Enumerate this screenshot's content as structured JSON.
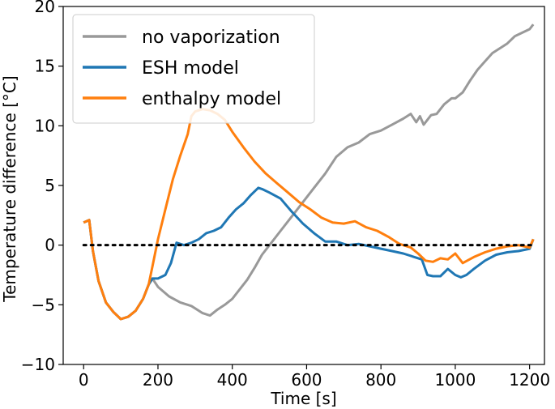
{
  "chart_data": {
    "type": "line",
    "title": "",
    "xlabel": "Time [s]",
    "ylabel": "Temperature difference [°C]",
    "xlim": [
      -55,
      1240
    ],
    "ylim": [
      -10,
      20
    ],
    "xticks": [
      0,
      200,
      400,
      600,
      800,
      1000,
      1200
    ],
    "yticks": [
      -10,
      -5,
      0,
      5,
      10,
      15,
      20
    ],
    "xtick_labels": [
      "0",
      "200",
      "400",
      "600",
      "800",
      "1000",
      "1200"
    ],
    "ytick_labels": [
      "−10",
      "−5",
      "0",
      "5",
      "10",
      "15",
      "20"
    ],
    "grid": false,
    "legend_position": "top-left",
    "reference_line": {
      "y": 0,
      "style": "dotted",
      "color": "#000000",
      "x_range": [
        0,
        1210
      ]
    },
    "series": [
      {
        "name": "no vaporization",
        "color": "#999999",
        "x": [
          0,
          15,
          25,
          40,
          60,
          80,
          100,
          120,
          140,
          160,
          175,
          185,
          200,
          230,
          260,
          290,
          320,
          340,
          360,
          380,
          400,
          420,
          440,
          460,
          480,
          500,
          530,
          560,
          590,
          620,
          650,
          680,
          710,
          740,
          770,
          800,
          830,
          860,
          880,
          895,
          905,
          915,
          935,
          950,
          970,
          990,
          1000,
          1020,
          1040,
          1060,
          1080,
          1100,
          1120,
          1140,
          1160,
          1180,
          1200,
          1210
        ],
        "y": [
          1.9,
          2.1,
          -0.5,
          -3.0,
          -4.8,
          -5.6,
          -6.2,
          -6.0,
          -5.5,
          -4.5,
          -3.3,
          -2.8,
          -3.5,
          -4.3,
          -4.8,
          -5.1,
          -5.7,
          -5.9,
          -5.4,
          -5.0,
          -4.5,
          -3.7,
          -2.9,
          -1.9,
          -0.8,
          0.0,
          1.2,
          2.4,
          3.6,
          4.8,
          6.0,
          7.4,
          8.2,
          8.6,
          9.3,
          9.6,
          10.1,
          10.6,
          11.0,
          10.3,
          10.8,
          10.1,
          10.9,
          11.0,
          11.8,
          12.3,
          12.3,
          12.8,
          13.8,
          14.7,
          15.4,
          16.1,
          16.5,
          16.9,
          17.5,
          17.8,
          18.1,
          18.5
        ]
      },
      {
        "name": "ESH model",
        "color": "#1f77b4",
        "x": [
          0,
          15,
          25,
          40,
          60,
          80,
          100,
          120,
          140,
          160,
          175,
          185,
          200,
          220,
          235,
          250,
          270,
          290,
          310,
          330,
          350,
          370,
          390,
          410,
          430,
          450,
          470,
          480,
          500,
          530,
          560,
          590,
          620,
          650,
          680,
          710,
          740,
          770,
          800,
          830,
          860,
          890,
          910,
          925,
          940,
          960,
          980,
          1000,
          1015,
          1030,
          1050,
          1080,
          1110,
          1140,
          1170,
          1200,
          1210
        ],
        "y": [
          1.9,
          2.1,
          -0.5,
          -3.0,
          -4.8,
          -5.6,
          -6.2,
          -6.0,
          -5.5,
          -4.5,
          -3.3,
          -2.8,
          -2.8,
          -2.5,
          -1.5,
          0.2,
          0.0,
          0.2,
          0.5,
          1.0,
          1.2,
          1.5,
          2.3,
          3.0,
          3.5,
          4.2,
          4.8,
          4.7,
          4.4,
          3.9,
          2.8,
          1.8,
          1.0,
          0.3,
          0.3,
          0.0,
          0.1,
          -0.1,
          -0.3,
          -0.5,
          -0.7,
          -1.0,
          -1.2,
          -2.5,
          -2.6,
          -2.6,
          -2.0,
          -2.5,
          -2.7,
          -2.5,
          -2.0,
          -1.3,
          -0.8,
          -0.6,
          -0.5,
          -0.3,
          0.5
        ]
      },
      {
        "name": "enthalpy model",
        "color": "#ff7f0e",
        "x": [
          0,
          15,
          25,
          40,
          60,
          80,
          100,
          120,
          140,
          160,
          175,
          185,
          200,
          220,
          240,
          260,
          280,
          290,
          300,
          320,
          340,
          360,
          380,
          400,
          430,
          460,
          490,
          520,
          550,
          580,
          610,
          640,
          670,
          700,
          730,
          760,
          790,
          820,
          850,
          880,
          900,
          920,
          940,
          960,
          980,
          1000,
          1020,
          1050,
          1080,
          1110,
          1140,
          1170,
          1200,
          1210
        ],
        "y": [
          1.9,
          2.1,
          -0.5,
          -3.0,
          -4.8,
          -5.6,
          -6.2,
          -6.0,
          -5.5,
          -4.5,
          -3.3,
          -1.8,
          0.5,
          3.0,
          5.5,
          7.5,
          9.3,
          10.8,
          11.2,
          11.4,
          11.3,
          11.0,
          10.5,
          9.5,
          8.2,
          7.0,
          6.0,
          5.2,
          4.4,
          3.6,
          3.0,
          2.3,
          1.9,
          1.8,
          2.0,
          1.5,
          1.2,
          0.7,
          0.1,
          -0.2,
          -0.7,
          -1.3,
          -1.4,
          -1.1,
          -1.2,
          -0.7,
          -1.5,
          -1.0,
          -0.6,
          -0.3,
          -0.1,
          0.0,
          -0.2,
          0.5
        ]
      }
    ]
  }
}
